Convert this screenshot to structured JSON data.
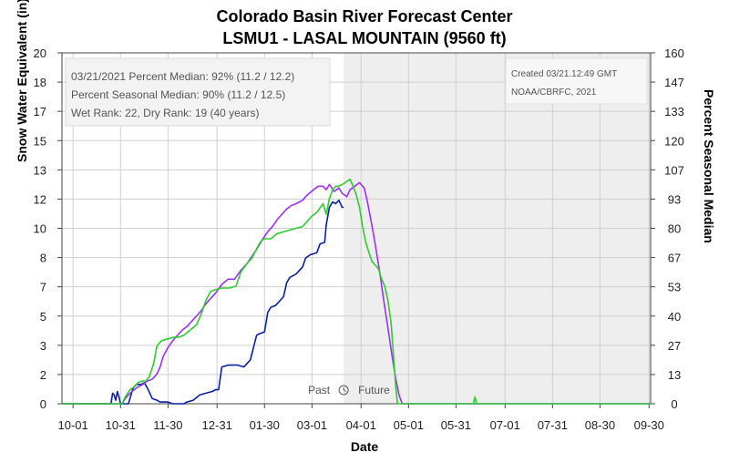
{
  "chart_data": {
    "type": "line",
    "title": "Colorado Basin River Forecast Center",
    "subtitle": "LSMU1 - LASAL MOUNTAIN (9560 ft)",
    "xlabel": "Date",
    "ylabel": "Snow Water Equivalent (in)",
    "ylabel_right": "Percent Seasonal Median",
    "x_ticks": [
      "10-01",
      "10-31",
      "11-30",
      "12-31",
      "01-30",
      "03-01",
      "04-01",
      "05-01",
      "05-31",
      "07-01",
      "07-31",
      "08-30",
      "09-30"
    ],
    "y_ticks": [
      "0",
      "2",
      "3",
      "5",
      "7",
      "8",
      "10",
      "12",
      "13",
      "15",
      "17",
      "18",
      "20"
    ],
    "y_ticks_right": [
      "0",
      "13",
      "27",
      "40",
      "53",
      "67",
      "80",
      "93",
      "107",
      "120",
      "133",
      "147",
      "160"
    ],
    "ylim": [
      0,
      20
    ],
    "xlim_days": [
      -7,
      365
    ],
    "today_day": 171,
    "divider_labels": {
      "past": "Past",
      "future": "Future"
    },
    "info_lines": [
      "03/21/2021 Percent Median: 92% (11.2 / 12.2)",
      "Percent Seasonal Median: 90% (11.2 / 12.5)",
      "Wet Rank: 22, Dry Rank: 19  (40 years)"
    ],
    "credit_lines": [
      "Created 03/21.12:49 GMT",
      "NOAA/CBRFC, 2021"
    ],
    "series": [
      {
        "color": "#0b1fa8",
        "points": [
          [
            -7,
            0
          ],
          [
            24,
            0
          ],
          [
            25,
            0.6
          ],
          [
            26,
            0.5
          ],
          [
            27,
            0.2
          ],
          [
            28,
            0.7
          ],
          [
            29,
            0.4
          ],
          [
            30,
            0
          ],
          [
            35,
            0
          ],
          [
            38,
            0.9
          ],
          [
            40,
            1.1
          ],
          [
            43,
            1.1
          ],
          [
            45,
            1.2
          ],
          [
            47,
            0.9
          ],
          [
            50,
            0.3
          ],
          [
            53,
            0.2
          ],
          [
            55,
            0.1
          ],
          [
            60,
            0.1
          ],
          [
            63,
            0
          ],
          [
            70,
            0
          ],
          [
            72,
            0.1
          ],
          [
            76,
            0.2
          ],
          [
            80,
            0.5
          ],
          [
            84,
            0.6
          ],
          [
            88,
            0.7
          ],
          [
            90,
            0.8
          ],
          [
            92,
            0.8
          ],
          [
            94,
            2.1
          ],
          [
            98,
            2.2
          ],
          [
            104,
            2.2
          ],
          [
            108,
            2.1
          ],
          [
            112,
            2.5
          ],
          [
            116,
            3.9
          ],
          [
            118,
            4
          ],
          [
            121,
            4.1
          ],
          [
            123,
            5.2
          ],
          [
            125,
            5.5
          ],
          [
            128,
            5.6
          ],
          [
            133,
            6.1
          ],
          [
            135,
            6.9
          ],
          [
            137,
            7.2
          ],
          [
            141,
            7.4
          ],
          [
            145,
            7.8
          ],
          [
            147,
            8.3
          ],
          [
            150,
            8.5
          ],
          [
            154,
            8.6
          ],
          [
            156,
            9.1
          ],
          [
            159,
            9.2
          ],
          [
            160,
            10.2
          ],
          [
            162,
            11.2
          ],
          [
            164,
            11.5
          ],
          [
            166,
            11.4
          ],
          [
            168,
            11.6
          ],
          [
            170,
            11.2
          ],
          [
            171,
            11.2
          ]
        ]
      },
      {
        "color": "#9b30ff",
        "points": [
          [
            -7,
            0
          ],
          [
            31,
            0
          ],
          [
            33,
            0.3
          ],
          [
            36,
            0.6
          ],
          [
            40,
            0.9
          ],
          [
            44,
            1.1
          ],
          [
            47,
            1.3
          ],
          [
            50,
            1.4
          ],
          [
            53,
            1.7
          ],
          [
            55,
            2.1
          ],
          [
            57,
            2.7
          ],
          [
            60,
            3.2
          ],
          [
            63,
            3.6
          ],
          [
            66,
            3.9
          ],
          [
            69,
            4.2
          ],
          [
            72,
            4.4
          ],
          [
            75,
            4.7
          ],
          [
            78,
            5
          ],
          [
            81,
            5.3
          ],
          [
            84,
            5.7
          ],
          [
            87,
            6
          ],
          [
            90,
            6.3
          ],
          [
            94,
            6.8
          ],
          [
            98,
            7.1
          ],
          [
            102,
            7.1
          ],
          [
            106,
            7.6
          ],
          [
            110,
            8
          ],
          [
            113,
            8.4
          ],
          [
            116,
            8.8
          ],
          [
            118,
            9.1
          ],
          [
            120,
            9.4
          ],
          [
            123,
            9.8
          ],
          [
            126,
            10.1
          ],
          [
            129,
            10.5
          ],
          [
            132,
            10.8
          ],
          [
            135,
            11.1
          ],
          [
            138,
            11.3
          ],
          [
            141,
            11.4
          ],
          [
            145,
            11.6
          ],
          [
            148,
            11.9
          ],
          [
            152,
            12.2
          ],
          [
            155,
            12.4
          ],
          [
            158,
            12.4
          ],
          [
            160,
            12.2
          ],
          [
            162,
            12.5
          ],
          [
            165,
            12.1
          ],
          [
            168,
            12.3
          ],
          [
            170,
            12
          ],
          [
            173,
            11.8
          ],
          [
            175,
            12.2
          ],
          [
            178,
            12.4
          ],
          [
            181,
            12.6
          ],
          [
            184,
            12.3
          ],
          [
            186,
            11.5
          ],
          [
            188,
            10.6
          ],
          [
            190,
            9.6
          ],
          [
            192,
            8.5
          ],
          [
            194,
            7.4
          ],
          [
            196,
            6.1
          ],
          [
            198,
            4.9
          ],
          [
            200,
            3.7
          ],
          [
            202,
            2.5
          ],
          [
            204,
            1.4
          ],
          [
            206,
            0.5
          ],
          [
            208,
            0
          ],
          [
            365,
            0
          ]
        ]
      },
      {
        "color": "#2ecc2e",
        "points": [
          [
            -7,
            0
          ],
          [
            31,
            0
          ],
          [
            33,
            0.4
          ],
          [
            36,
            0.8
          ],
          [
            39,
            1
          ],
          [
            41,
            1.2
          ],
          [
            44,
            1.3
          ],
          [
            46,
            1.3
          ],
          [
            48,
            1.5
          ],
          [
            51,
            2.3
          ],
          [
            53,
            3.3
          ],
          [
            56,
            3.6
          ],
          [
            60,
            3.7
          ],
          [
            64,
            3.8
          ],
          [
            67,
            3.8
          ],
          [
            70,
            3.9
          ],
          [
            74,
            4.2
          ],
          [
            78,
            4.5
          ],
          [
            81,
            5.1
          ],
          [
            84,
            5.9
          ],
          [
            87,
            6.4
          ],
          [
            90,
            6.5
          ],
          [
            94,
            6.6
          ],
          [
            99,
            6.6
          ],
          [
            103,
            6.7
          ],
          [
            106,
            7.5
          ],
          [
            110,
            8
          ],
          [
            113,
            8.3
          ],
          [
            117,
            9
          ],
          [
            119,
            9.3
          ],
          [
            121,
            9.4
          ],
          [
            125,
            9.4
          ],
          [
            129,
            9.7
          ],
          [
            133,
            9.8
          ],
          [
            137,
            9.9
          ],
          [
            141,
            10
          ],
          [
            145,
            10.1
          ],
          [
            148,
            10.4
          ],
          [
            151,
            10.7
          ],
          [
            154,
            10.9
          ],
          [
            158,
            11.4
          ],
          [
            160,
            10.8
          ],
          [
            162,
            11.7
          ],
          [
            164,
            12.2
          ],
          [
            166,
            12.4
          ],
          [
            168,
            12.4
          ],
          [
            170,
            12.5
          ],
          [
            172,
            12.6
          ],
          [
            175,
            12.8
          ],
          [
            177,
            12.4
          ],
          [
            179,
            11.9
          ],
          [
            181,
            11.2
          ],
          [
            183,
            10.1
          ],
          [
            185,
            9.2
          ],
          [
            187,
            8.6
          ],
          [
            189,
            8.1
          ],
          [
            191,
            7.9
          ],
          [
            193,
            7.7
          ],
          [
            195,
            7.1
          ],
          [
            197,
            6.7
          ],
          [
            199,
            5.9
          ],
          [
            201,
            4.6
          ],
          [
            202,
            3.4
          ],
          [
            203,
            2.1
          ],
          [
            204,
            0.9
          ],
          [
            205,
            0
          ],
          [
            253,
            0
          ],
          [
            254,
            0.4
          ],
          [
            255,
            0
          ],
          [
            365,
            0
          ]
        ]
      }
    ]
  }
}
